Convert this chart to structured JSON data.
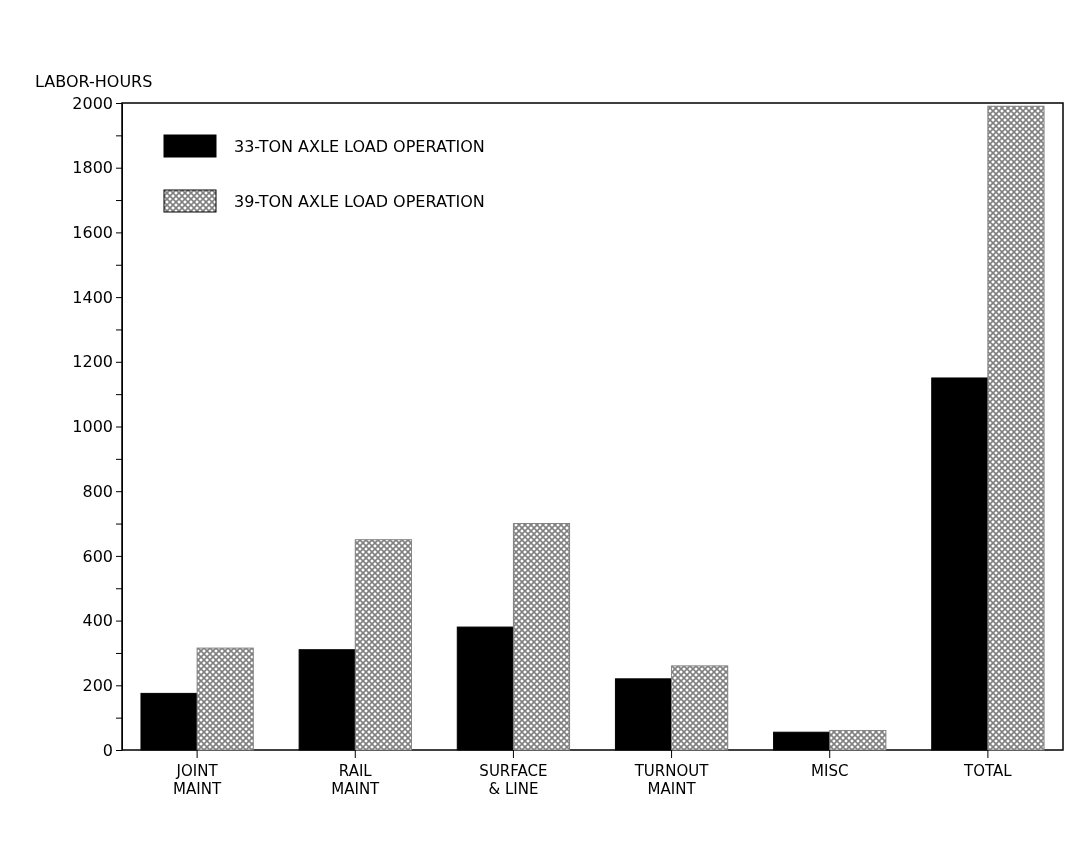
{
  "chart_data": {
    "type": "bar",
    "ylabel": "LABOR-HOURS",
    "categories": [
      "JOINT\nMAINT",
      "RAIL\nMAINT",
      "SURFACE\n& LINE",
      "TURNOUT\nMAINT",
      "MISC",
      "TOTAL"
    ],
    "series": [
      {
        "name": "33-TON AXLE LOAD OPERATION",
        "color": "#000000",
        "values": [
          175,
          310,
          380,
          220,
          55,
          1150
        ]
      },
      {
        "name": "39-TON AXLE LOAD OPERATION",
        "color": "#808080",
        "values": [
          315,
          650,
          700,
          260,
          60,
          1990
        ]
      }
    ],
    "ylim": [
      0,
      2000
    ],
    "yticks": [
      0,
      {
        "value": 100,
        "label": null
      },
      200,
      {
        "value": 300,
        "label": null
      },
      400,
      {
        "value": 500,
        "label": null
      },
      600,
      {
        "value": 700,
        "label": null
      },
      800,
      {
        "value": 900,
        "label": null
      },
      1000,
      {
        "value": 1100,
        "label": null
      },
      1200,
      {
        "value": 1300,
        "label": null
      },
      1400,
      {
        "value": 1500,
        "label": null
      },
      1600,
      {
        "value": 1700,
        "label": null
      },
      1800,
      {
        "value": 1900,
        "label": null
      },
      2000
    ],
    "grid": false,
    "legend": "top left"
  }
}
